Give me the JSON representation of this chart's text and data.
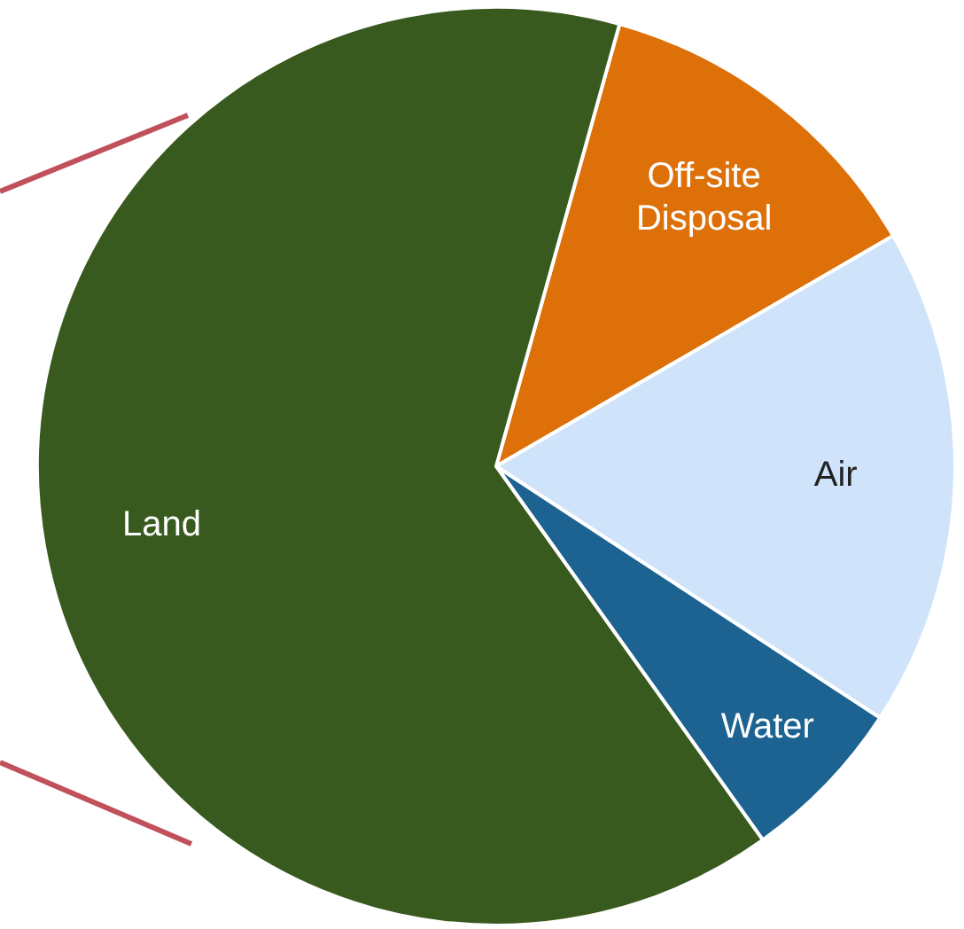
{
  "chart_data": {
    "type": "pie",
    "categories": [
      "Off-site Disposal",
      "Air",
      "Water",
      "Land"
    ],
    "values": [
      12.3,
      17.6,
      5.9,
      64.2
    ],
    "colors": [
      "#dd7008",
      "#cfe3fb",
      "#1d6392",
      "#395a1f"
    ]
  }
}
